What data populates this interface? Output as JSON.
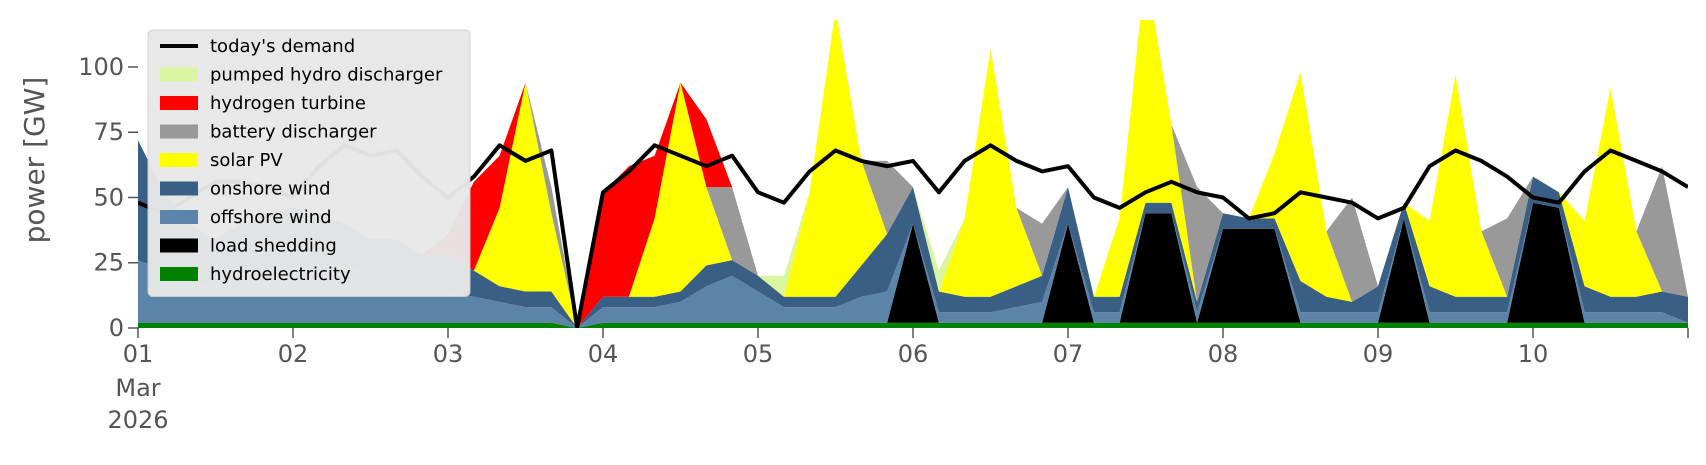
{
  "chart_data": {
    "type": "area",
    "subtype": "stacked area with demand line",
    "ylabel": "power [GW]",
    "xlabel": "",
    "xlim": [
      0,
      10
    ],
    "ylim": [
      0,
      118
    ],
    "yticks": [
      0,
      25,
      50,
      75,
      100
    ],
    "x_tick_labels": [
      {
        "x": 0,
        "text": "01",
        "extra": [
          "Mar",
          "2026"
        ]
      },
      {
        "x": 1,
        "text": "02"
      },
      {
        "x": 2,
        "text": "03"
      },
      {
        "x": 3,
        "text": "04"
      },
      {
        "x": 4,
        "text": "05"
      },
      {
        "x": 5,
        "text": "06"
      },
      {
        "x": 6,
        "text": "07"
      },
      {
        "x": 7,
        "text": "08"
      },
      {
        "x": 8,
        "text": "09"
      },
      {
        "x": 9,
        "text": "10"
      }
    ],
    "grid": false,
    "legend_position": "upper left",
    "x_unit": "days since 01 Mar 2026 (4-hourly)",
    "x": [
      0,
      0.167,
      0.333,
      0.5,
      0.667,
      0.833,
      1,
      1.167,
      1.333,
      1.5,
      1.667,
      1.833,
      2,
      2.167,
      2.333,
      2.5,
      2.667,
      2.833,
      3,
      3.167,
      3.333,
      3.5,
      3.667,
      3.833,
      4,
      4.167,
      4.333,
      4.5,
      4.667,
      4.833,
      5,
      5.167,
      5.333,
      5.5,
      5.667,
      5.833,
      6,
      6.167,
      6.333,
      6.5,
      6.667,
      6.833,
      7,
      7.167,
      7.333,
      7.5,
      7.667,
      7.833,
      8,
      8.167,
      8.333,
      8.5,
      8.667,
      8.833,
      9,
      9.167,
      9.333,
      9.5,
      9.667,
      9.833,
      10
    ],
    "demand": {
      "name": "today's demand",
      "color": "#000000",
      "values": [
        48,
        44,
        50,
        56,
        56,
        54,
        50,
        62,
        70,
        66,
        68,
        58,
        50,
        58,
        70,
        64,
        68,
        0,
        52,
        60,
        70,
        66,
        62,
        66,
        52,
        48,
        60,
        68,
        64,
        62,
        64,
        52,
        64,
        70,
        64,
        60,
        62,
        50,
        46,
        52,
        56,
        52,
        50,
        42,
        44,
        52,
        50,
        48,
        42,
        46,
        62,
        68,
        64,
        58,
        50,
        48,
        60,
        68,
        64,
        60,
        54
      ]
    },
    "series": [
      {
        "name": "hydroelectricity",
        "color": "#008000",
        "values": [
          2,
          2,
          2,
          2,
          2,
          2,
          2,
          2,
          2,
          2,
          2,
          2,
          2,
          2,
          2,
          2,
          2,
          0,
          2,
          2,
          2,
          2,
          2,
          2,
          2,
          2,
          2,
          2,
          2,
          2,
          2,
          2,
          2,
          2,
          2,
          2,
          2,
          2,
          2,
          2,
          2,
          2,
          2,
          2,
          2,
          2,
          2,
          2,
          2,
          2,
          2,
          2,
          2,
          2,
          2,
          2,
          2,
          2,
          2,
          2,
          2
        ]
      },
      {
        "name": "load shedding",
        "color": "#000000",
        "values": [
          0,
          0,
          0,
          0,
          0,
          0,
          0,
          0,
          0,
          0,
          0,
          0,
          0,
          0,
          0,
          0,
          0,
          0,
          0,
          0,
          0,
          0,
          0,
          0,
          0,
          0,
          0,
          0,
          0,
          0,
          38,
          0,
          0,
          0,
          0,
          0,
          38,
          0,
          0,
          42,
          42,
          0,
          36,
          36,
          36,
          0,
          0,
          0,
          0,
          40,
          0,
          0,
          0,
          0,
          46,
          44,
          0,
          0,
          0,
          0,
          0
        ]
      },
      {
        "name": "offshore wind",
        "color": "#5b84a8",
        "values": [
          24,
          20,
          16,
          14,
          16,
          18,
          20,
          22,
          22,
          20,
          18,
          14,
          12,
          10,
          8,
          6,
          6,
          0,
          6,
          6,
          6,
          8,
          14,
          18,
          12,
          6,
          6,
          6,
          10,
          12,
          0,
          4,
          4,
          4,
          6,
          8,
          0,
          4,
          4,
          0,
          0,
          4,
          0,
          0,
          0,
          4,
          4,
          4,
          4,
          0,
          4,
          4,
          4,
          4,
          0,
          0,
          4,
          4,
          4,
          4,
          0
        ]
      },
      {
        "name": "onshore wind",
        "color": "#3a5f85",
        "values": [
          46,
          30,
          22,
          18,
          22,
          24,
          24,
          20,
          16,
          12,
          14,
          12,
          14,
          10,
          6,
          6,
          6,
          0,
          4,
          4,
          4,
          4,
          8,
          6,
          6,
          4,
          4,
          4,
          12,
          22,
          14,
          8,
          6,
          6,
          8,
          10,
          14,
          6,
          6,
          4,
          4,
          4,
          6,
          4,
          4,
          12,
          6,
          4,
          10,
          6,
          10,
          6,
          6,
          6,
          10,
          6,
          10,
          6,
          6,
          8,
          10
        ]
      },
      {
        "name": "solar PV",
        "color": "#ffff00",
        "values": [
          0,
          0,
          0,
          0,
          0,
          0,
          0,
          0,
          0,
          0,
          0,
          0,
          0,
          0,
          30,
          80,
          30,
          0,
          0,
          0,
          30,
          80,
          30,
          0,
          0,
          0,
          40,
          110,
          40,
          0,
          0,
          0,
          30,
          95,
          30,
          0,
          0,
          0,
          30,
          90,
          30,
          0,
          0,
          0,
          25,
          80,
          25,
          0,
          0,
          0,
          25,
          85,
          25,
          0,
          0,
          0,
          25,
          80,
          25,
          0,
          0
        ]
      },
      {
        "name": "battery discharger",
        "color": "#999999",
        "values": [
          0,
          0,
          0,
          0,
          0,
          0,
          0,
          0,
          0,
          0,
          0,
          0,
          0,
          0,
          0,
          0,
          10,
          0,
          0,
          0,
          0,
          0,
          0,
          28,
          0,
          0,
          0,
          0,
          0,
          28,
          0,
          0,
          0,
          0,
          0,
          20,
          0,
          0,
          0,
          0,
          0,
          44,
          0,
          0,
          0,
          0,
          0,
          40,
          0,
          0,
          0,
          0,
          0,
          30,
          0,
          0,
          0,
          0,
          0,
          48,
          0
        ]
      },
      {
        "name": "hydrogen turbine",
        "color": "#ff0000",
        "values": [
          0,
          0,
          0,
          0,
          0,
          0,
          0,
          0,
          0,
          0,
          0,
          0,
          8,
          34,
          20,
          0,
          0,
          0,
          40,
          50,
          24,
          0,
          26,
          0,
          0,
          0,
          0,
          0,
          0,
          0,
          0,
          0,
          0,
          0,
          0,
          0,
          0,
          0,
          0,
          0,
          0,
          0,
          0,
          0,
          0,
          0,
          0,
          0,
          0,
          0,
          0,
          0,
          0,
          0,
          0,
          0,
          0,
          0,
          0,
          0,
          0
        ]
      },
      {
        "name": "pumped hydro discharger",
        "color": "#d9f5a0",
        "values": [
          0,
          0,
          0,
          0,
          0,
          0,
          0,
          0,
          0,
          0,
          0,
          0,
          0,
          0,
          0,
          0,
          0,
          0,
          0,
          0,
          0,
          0,
          0,
          0,
          0,
          8,
          0,
          0,
          0,
          0,
          0,
          8,
          0,
          0,
          0,
          0,
          0,
          0,
          0,
          0,
          0,
          0,
          0,
          0,
          0,
          0,
          0,
          0,
          0,
          0,
          0,
          0,
          0,
          0,
          0,
          0,
          0,
          0,
          0,
          0,
          0
        ]
      }
    ],
    "legend_entries": [
      {
        "label": "today's demand",
        "kind": "line",
        "color": "#000000"
      },
      {
        "label": "pumped hydro discharger",
        "kind": "patch",
        "color": "#d9f5a0"
      },
      {
        "label": "hydrogen turbine",
        "kind": "patch",
        "color": "#ff0000"
      },
      {
        "label": "battery discharger",
        "kind": "patch",
        "color": "#999999"
      },
      {
        "label": "solar PV",
        "kind": "patch",
        "color": "#ffff00"
      },
      {
        "label": "onshore wind",
        "kind": "patch",
        "color": "#3a5f85"
      },
      {
        "label": "offshore wind",
        "kind": "patch",
        "color": "#5b84a8"
      },
      {
        "label": "load shedding",
        "kind": "patch",
        "color": "#000000"
      },
      {
        "label": "hydroelectricity",
        "kind": "patch",
        "color": "#008000"
      }
    ]
  }
}
